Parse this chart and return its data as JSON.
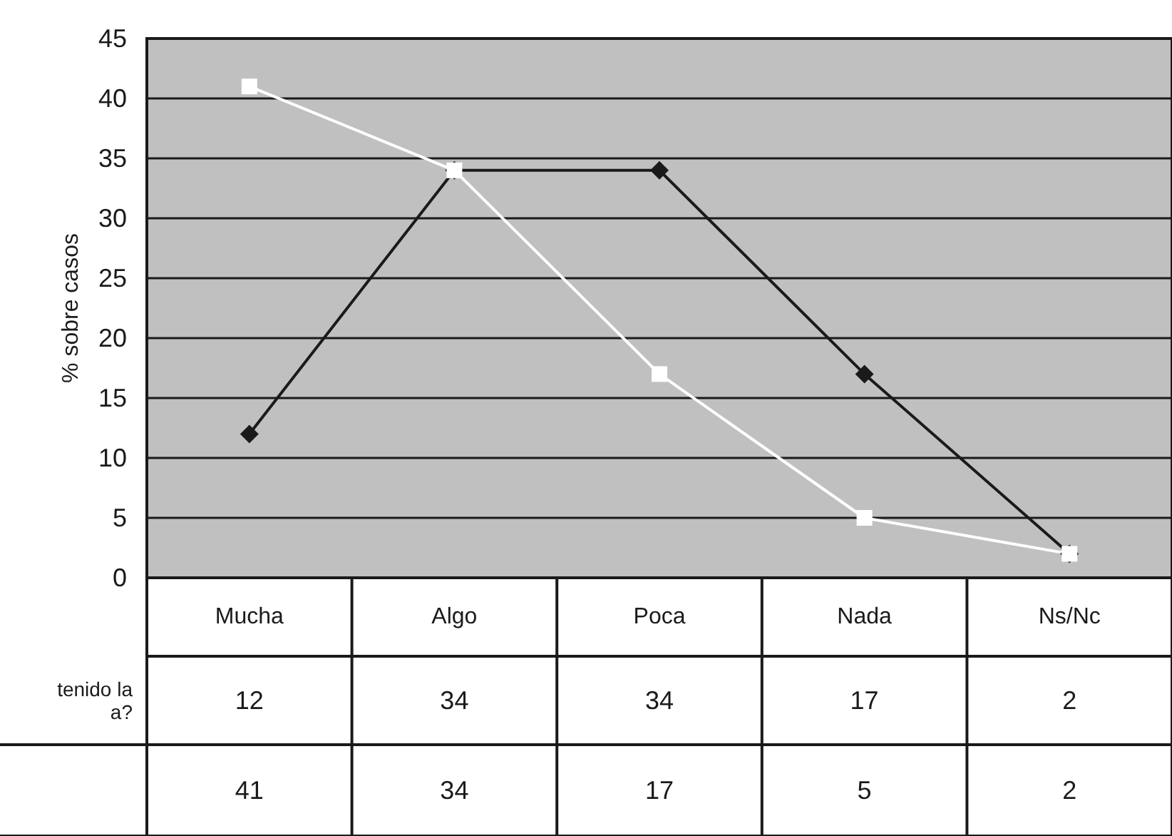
{
  "chart_data": {
    "type": "line",
    "ylabel": "% sobre casos",
    "categories": [
      "Mucha",
      "Algo",
      "Poca",
      "Nada",
      "Ns/Nc"
    ],
    "series": [
      {
        "name": "tenido la\na?",
        "color": "#1a1a1a",
        "marker": "diamond",
        "values": [
          12,
          34,
          34,
          17,
          2
        ]
      },
      {
        "color": "#ffffff",
        "marker": "square",
        "values": [
          41,
          34,
          17,
          5,
          2
        ]
      }
    ],
    "ylim": [
      0,
      45
    ],
    "yticks": [
      0,
      5,
      10,
      15,
      20,
      25,
      30,
      35,
      40,
      45
    ],
    "grid": "y",
    "data_labels": true,
    "legend": false
  }
}
